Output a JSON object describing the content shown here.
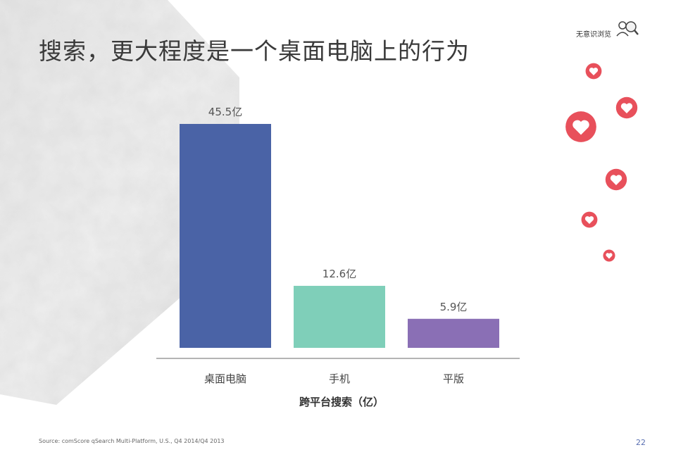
{
  "title": "搜索，更大程度是一个桌面电脑上的行为",
  "brand": {
    "name": "无意识浏览",
    "icon": "person-search-icon"
  },
  "chart_data": {
    "type": "bar",
    "categories": [
      "桌面电脑",
      "手机",
      "平版"
    ],
    "values": [
      45.5,
      12.6,
      5.9
    ],
    "data_labels": [
      "45.5亿",
      "12.6亿",
      "5.9亿"
    ],
    "colors": [
      "#4a63a6",
      "#7fcfb9",
      "#8a6fb5"
    ],
    "title": "",
    "xlabel": "跨平台搜索（亿）",
    "ylabel": "",
    "ylim": [
      0,
      45.5
    ],
    "grid": false,
    "legend": "none"
  },
  "source": "Source: comScore qSearch Multi-Platform, U.S., Q4 2014/Q4 2013",
  "page_number": "22",
  "decorations": {
    "heart_icon": "heart-icon",
    "heart_color": "#e8505b"
  }
}
